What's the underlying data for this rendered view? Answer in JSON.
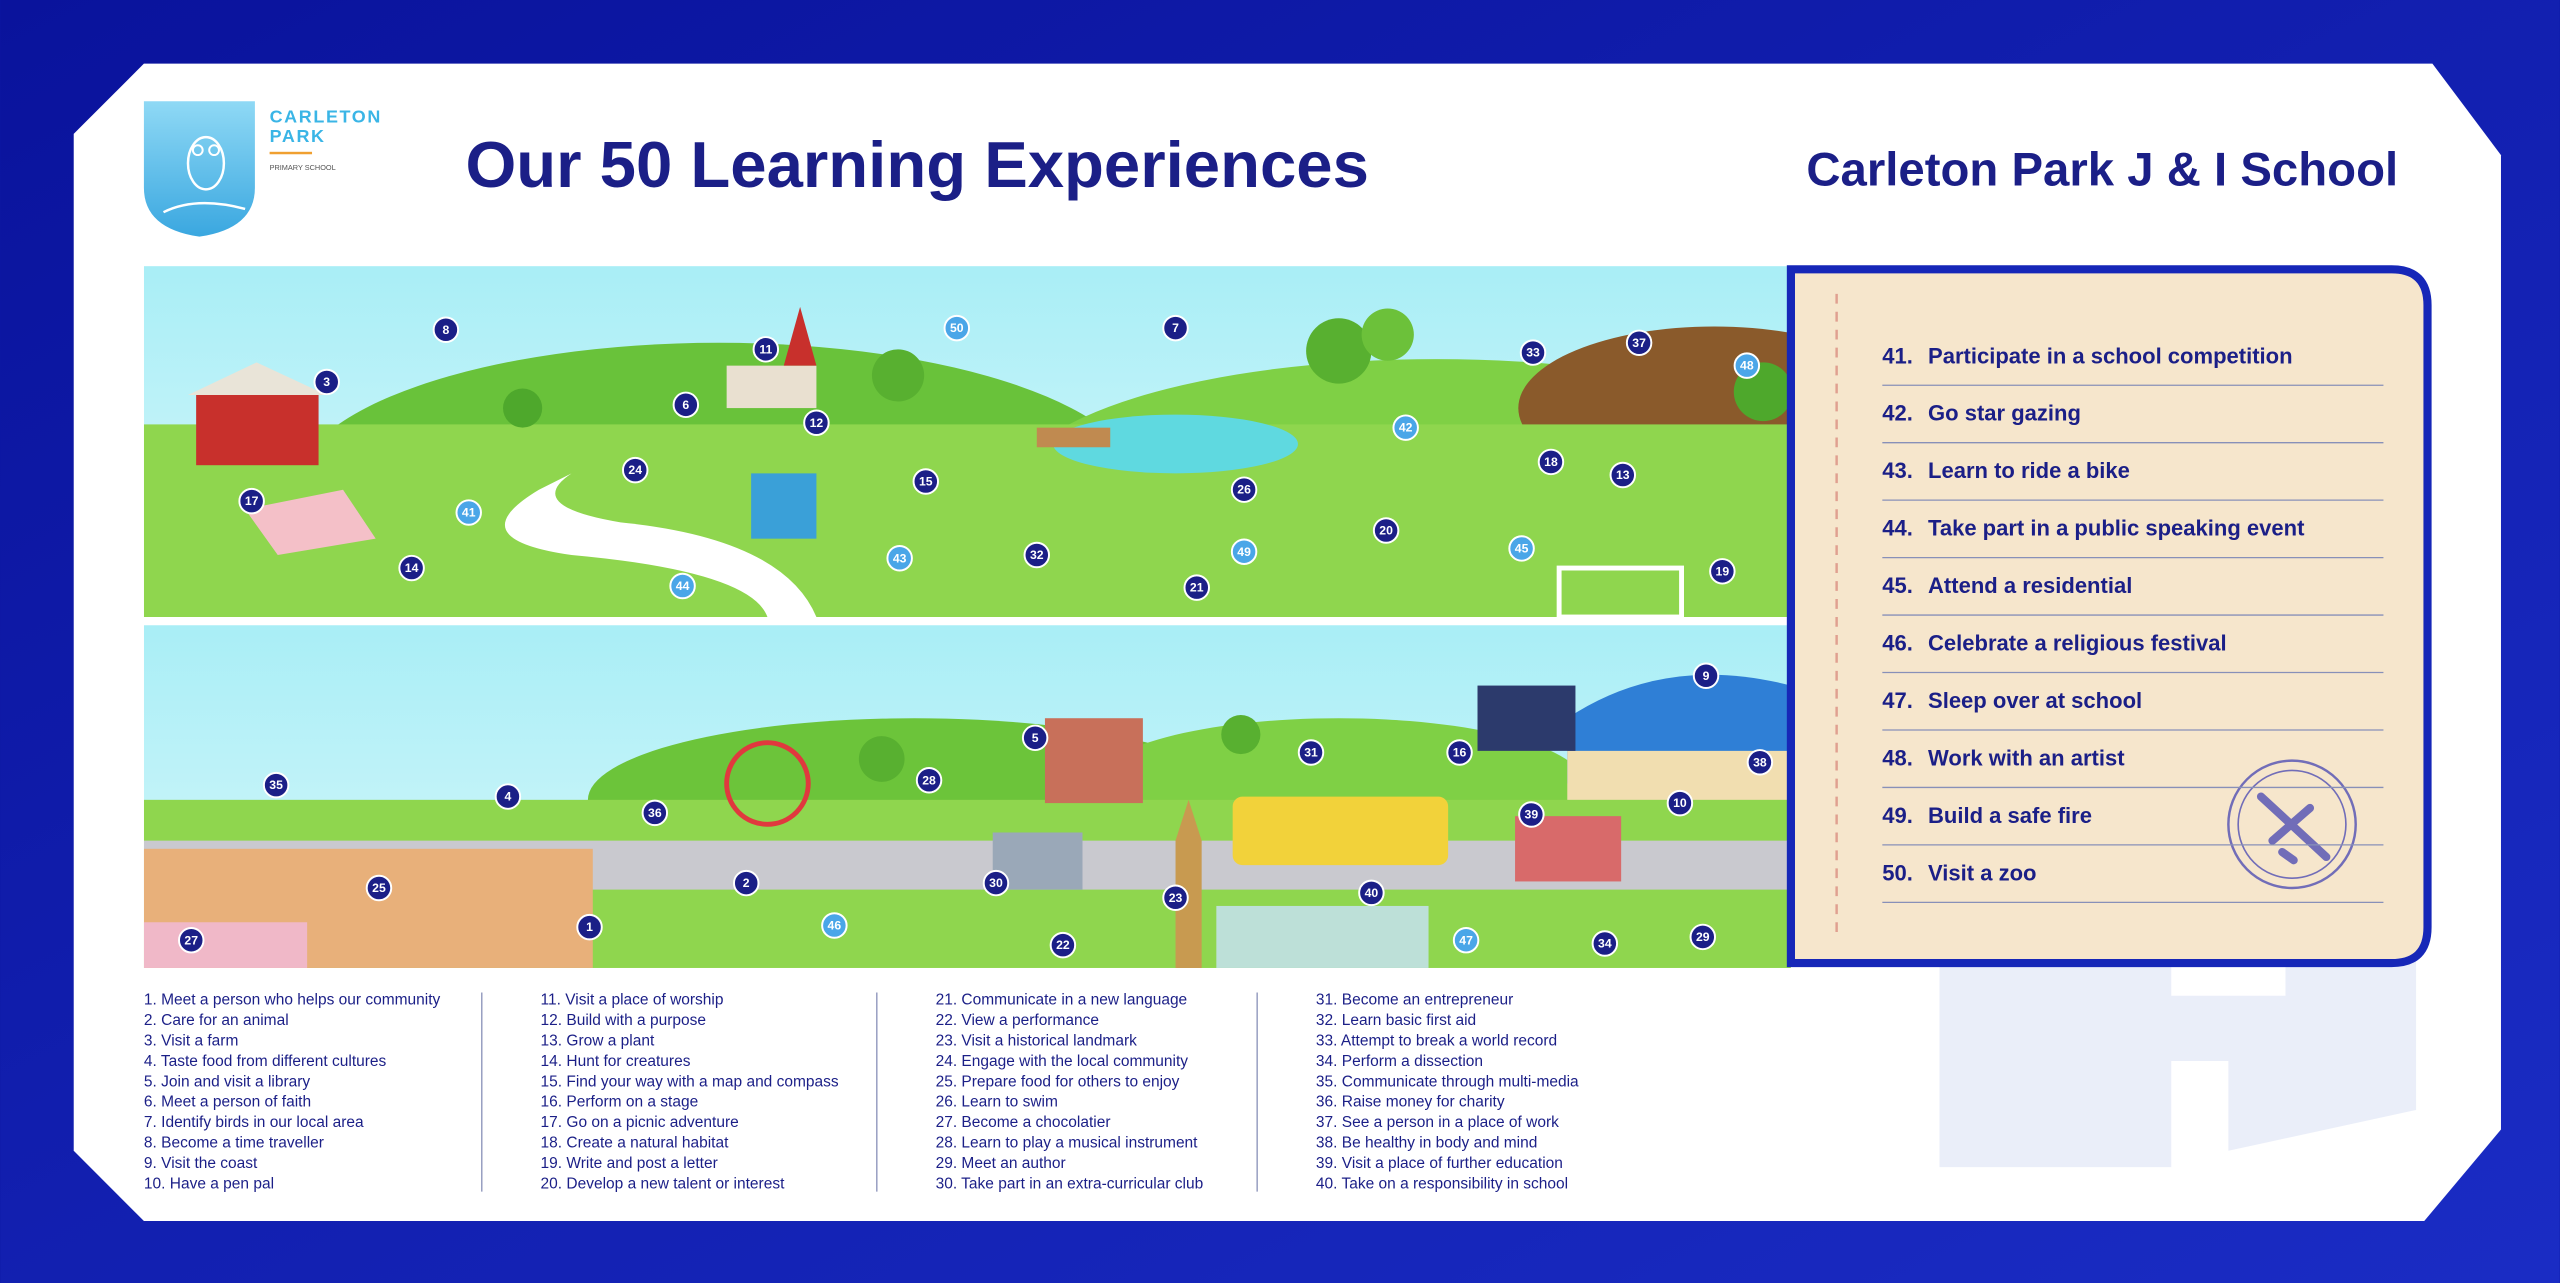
{
  "header": {
    "logo_line1": "CARLETON",
    "logo_line2": "PARK",
    "logo_sub": "PRIMARY SCHOOL",
    "title": "Our 50 Learning Experiences",
    "school": "Carleton Park J & I School"
  },
  "illustration": {
    "markers": [
      "3",
      "8",
      "11",
      "6",
      "50",
      "7",
      "33",
      "37",
      "48",
      "12",
      "24",
      "17",
      "41",
      "15",
      "26",
      "42",
      "18",
      "13",
      "43",
      "32",
      "20",
      "45",
      "14",
      "44",
      "21",
      "49",
      "19",
      "9",
      "35",
      "4",
      "36",
      "5",
      "28",
      "31",
      "16",
      "38",
      "39",
      "10",
      "30",
      "2",
      "25",
      "46",
      "23",
      "40",
      "1",
      "27",
      "22",
      "47",
      "34",
      "29"
    ]
  },
  "featured": [
    {
      "number": "41.",
      "text": "Participate in a school competition"
    },
    {
      "number": "42.",
      "text": "Go star gazing"
    },
    {
      "number": "43.",
      "text": "Learn to ride a bike"
    },
    {
      "number": "44.",
      "text": "Take part in a public speaking event"
    },
    {
      "number": "45.",
      "text": "Attend a residential"
    },
    {
      "number": "46.",
      "text": "Celebrate a religious festival"
    },
    {
      "number": "47.",
      "text": "Sleep over at school"
    },
    {
      "number": "48.",
      "text": "Work with an artist"
    },
    {
      "number": "49.",
      "text": "Build a safe fire"
    },
    {
      "number": "50.",
      "text": "Visit a zoo"
    }
  ],
  "list_columns": [
    [
      "1. Meet a person who helps our community",
      "2. Care for an animal",
      "3. Visit a farm",
      "4. Taste food from different cultures",
      "5. Join and visit a library",
      "6. Meet a person of faith",
      "7. Identify birds in our local area",
      "8. Become a time traveller",
      "9. Visit the coast",
      "10. Have a pen pal"
    ],
    [
      "11. Visit a place of worship",
      "12. Build with a purpose",
      "13. Grow a plant",
      "14. Hunt for creatures",
      "15. Find your way with a map and compass",
      "16. Perform on a stage",
      "17. Go on a picnic adventure",
      "18. Create a natural habitat",
      "19. Write and post a letter",
      "20. Develop a new talent or interest"
    ],
    [
      "21. Communicate in a new language",
      "22. View a performance",
      "23. Visit a historical landmark",
      "24. Engage with the local community",
      "25. Prepare food for others to enjoy",
      "26. Learn to swim",
      "27. Become a chocolatier",
      "28. Learn to play a musical instrument",
      "29. Meet an author",
      "30. Take part in an extra-curricular club"
    ],
    [
      "31. Become an entrepreneur",
      "32. Learn basic first aid",
      "33. Attempt to break a world record",
      "34. Perform a dissection",
      "35. Communicate through multi-media",
      "36. Raise money for charity",
      "37. See a person in a place of work",
      "38. Be healthy in body and mind",
      "39. Visit a place of further education",
      "40. Take on a responsibility in school"
    ]
  ]
}
